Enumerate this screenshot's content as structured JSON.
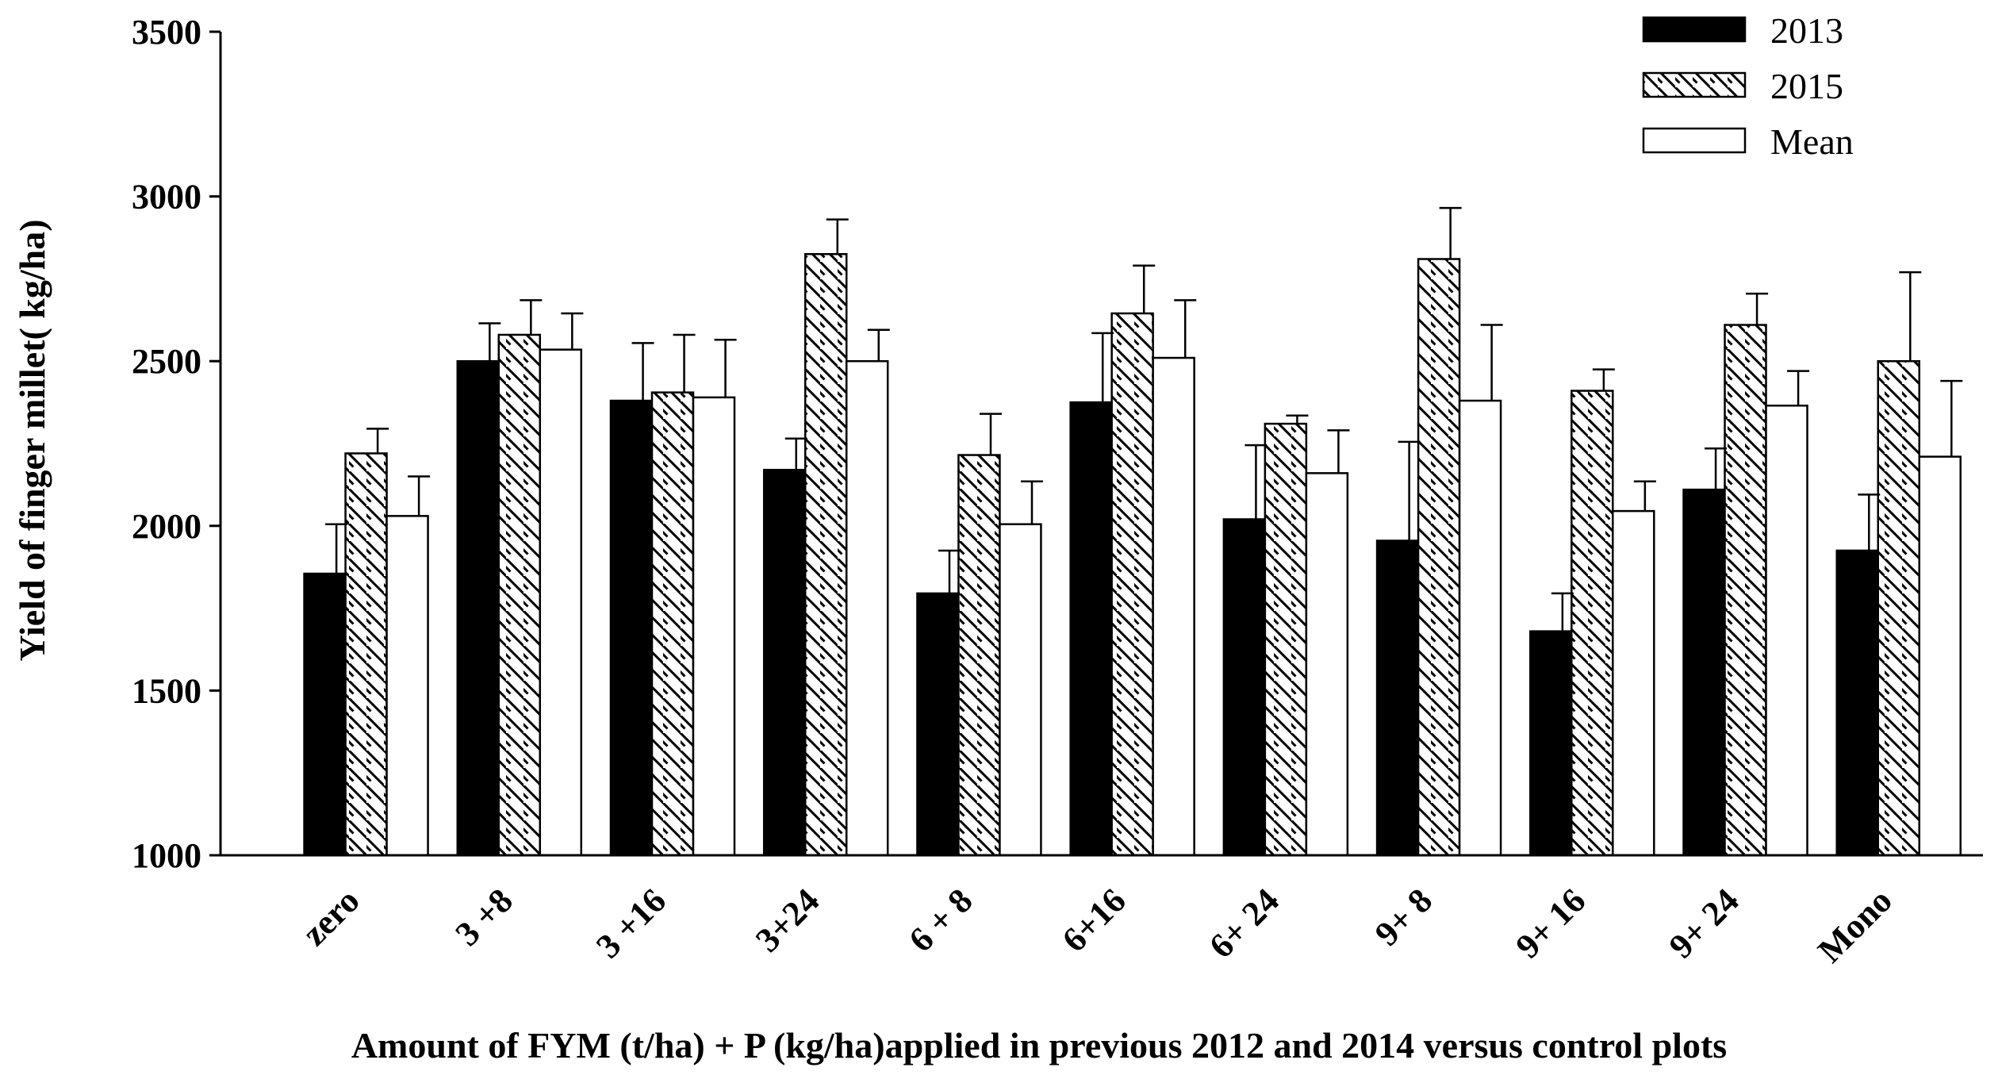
{
  "chart_data": {
    "type": "bar",
    "title": "",
    "xlabel": "Amount of FYM (t/ha) + P (kg/ha)applied in previous 2012 and 2014 versus control plots",
    "ylabel": "Yield of finger millet( kg/ha)",
    "ylim": [
      1000,
      3500
    ],
    "yticks": [
      "1000",
      "1500",
      "2000",
      "2500",
      "3000",
      "3500"
    ],
    "ytick_values": [
      1000,
      1500,
      2000,
      2500,
      3000,
      3500
    ],
    "grid": false,
    "legend_position": "top-right",
    "categories": [
      "zero",
      "3 +8",
      "3 +16",
      "3+24",
      "6 + 8",
      "6+16",
      "6+ 24",
      "9+ 8",
      "9+ 16",
      "9+ 24",
      "Mono"
    ],
    "series": [
      {
        "name": "2013",
        "fill": "solid",
        "color": "#000000",
        "values": [
          1855,
          2500,
          2380,
          2170,
          1795,
          2375,
          2020,
          1955,
          1680,
          2110,
          1925
        ],
        "errors": [
          150,
          115,
          175,
          95,
          130,
          210,
          225,
          300,
          115,
          125,
          170
        ]
      },
      {
        "name": "2015",
        "fill": "hatched",
        "color": "#ffffff",
        "values": [
          2220,
          2580,
          2405,
          2825,
          2215,
          2645,
          2310,
          2810,
          2410,
          2610,
          2500
        ],
        "errors": [
          75,
          105,
          175,
          105,
          125,
          145,
          25,
          155,
          65,
          95,
          270
        ]
      },
      {
        "name": "Mean",
        "fill": "open",
        "color": "#ffffff",
        "values": [
          2030,
          2535,
          2390,
          2500,
          2005,
          2510,
          2160,
          2380,
          2045,
          2365,
          2210
        ],
        "errors": [
          120,
          110,
          175,
          95,
          130,
          175,
          130,
          230,
          90,
          105,
          230
        ]
      }
    ]
  }
}
